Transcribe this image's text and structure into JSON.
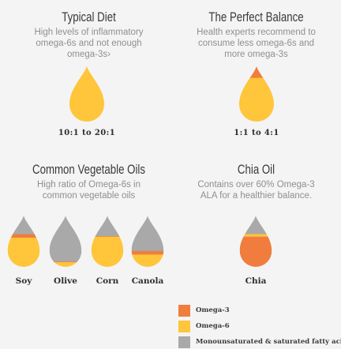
{
  "colors": {
    "omega3": "#f07d3e",
    "omega6": "#ffc53b",
    "mono": "#a9a9a9",
    "background": "#f4f4f4"
  },
  "typical_diet": {
    "title": "Typical Diet",
    "desc_lines": [
      "High levels of inflammatory",
      "omega-6s and not enough",
      "omega-3s›"
    ],
    "ratio": "10:1 to 20:1"
  },
  "perfect_balance": {
    "title": "The Perfect Balance",
    "desc_lines": [
      "Health experts recommend to",
      "consume less omega-6s and",
      "more omega-3s"
    ],
    "ratio": "1:1 to 4:1"
  },
  "common_oils": {
    "title": "Common Vegetable Oils",
    "desc_lines": [
      "High ratio of Omega-6s in",
      "common vegetable oils"
    ],
    "oils": [
      {
        "name": "Soy",
        "fill": {
          "omega6": 0.58,
          "omega3": 0.07,
          "mono": 0.35
        }
      },
      {
        "name": "Olive",
        "fill": {
          "omega6": 0.1,
          "omega3": 0.01,
          "mono": 0.89
        }
      },
      {
        "name": "Corn",
        "fill": {
          "omega6": 0.6,
          "omega3": 0.01,
          "mono": 0.39
        }
      },
      {
        "name": "Canola",
        "fill": {
          "omega6": 0.25,
          "omega3": 0.07,
          "mono": 0.68
        }
      }
    ]
  },
  "chia_oil": {
    "title": "Chia Oil",
    "desc_lines": [
      "Contains over 60% Omega-3",
      "ALA for a healthier balance."
    ],
    "name": "Chia",
    "fill": {
      "omega3": 0.6,
      "omega6": 0.05,
      "mono": 0.35
    }
  },
  "legend": [
    {
      "label": "Omega-3",
      "color": "#f07d3e"
    },
    {
      "label": "Omega-6",
      "color": "#ffc53b"
    },
    {
      "label": "Monounsaturated & saturated fatty acids",
      "color": "#a9a9a9"
    }
  ]
}
